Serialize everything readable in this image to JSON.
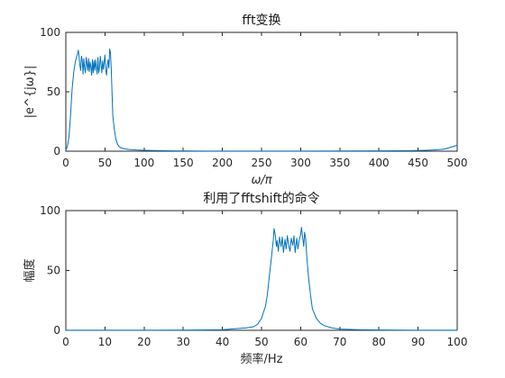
{
  "chart_data": [
    {
      "type": "line",
      "title": "fft变换",
      "xlabel": "ω/π",
      "ylabel": "|e^{jω}|",
      "xlim": [
        0,
        500
      ],
      "ylim": [
        0,
        100
      ],
      "xticks": [
        0,
        50,
        100,
        150,
        200,
        250,
        300,
        350,
        400,
        450,
        500
      ],
      "yticks": [
        0,
        50,
        100
      ],
      "grid": false,
      "series": [
        {
          "color": "#0072bd",
          "x": [
            0,
            2,
            4,
            6,
            8,
            10,
            12,
            14,
            15,
            16,
            17,
            18,
            19,
            20,
            21,
            22,
            23,
            24,
            25,
            26,
            27,
            28,
            29,
            30,
            31,
            32,
            33,
            34,
            35,
            36,
            37,
            38,
            39,
            40,
            41,
            42,
            43,
            44,
            45,
            46,
            47,
            48,
            49,
            50,
            51,
            52,
            53,
            54,
            55,
            56,
            57,
            58,
            59,
            60,
            62,
            64,
            66,
            68,
            70,
            75,
            80,
            90,
            100,
            120,
            140,
            160,
            180,
            200,
            250,
            300,
            350,
            400,
            440,
            460,
            470,
            480,
            485,
            490,
            495,
            500
          ],
          "y": [
            1,
            4,
            12,
            30,
            52,
            66,
            75,
            80,
            82,
            85,
            79,
            72,
            68,
            80,
            76,
            65,
            78,
            70,
            66,
            79,
            74,
            68,
            78,
            67,
            75,
            71,
            64,
            77,
            66,
            76,
            68,
            77,
            71,
            65,
            79,
            66,
            70,
            80,
            73,
            66,
            76,
            69,
            75,
            81,
            68,
            64,
            72,
            77,
            70,
            86,
            83,
            70,
            50,
            30,
            18,
            10,
            6,
            4,
            3,
            2,
            1.5,
            1,
            0.8,
            0.5,
            0.3,
            0.2,
            0.1,
            0.1,
            0.1,
            0.1,
            0.2,
            0.3,
            0.5,
            0.8,
            1,
            1.5,
            2,
            3,
            4,
            5
          ]
        }
      ]
    },
    {
      "type": "line",
      "title": "利用了fftshift的命令",
      "xlabel": "频率/Hz",
      "ylabel": "幅度",
      "xlim": [
        0,
        100
      ],
      "ylim": [
        0,
        100
      ],
      "xticks": [
        0,
        10,
        20,
        30,
        40,
        50,
        60,
        70,
        80,
        90,
        100
      ],
      "yticks": [
        0,
        50,
        100
      ],
      "grid": false,
      "series": [
        {
          "color": "#0072bd",
          "x": [
            0,
            10,
            20,
            30,
            35,
            40,
            42,
            44,
            46,
            48,
            49,
            50,
            51,
            51.5,
            52,
            52.5,
            53,
            53.2,
            53.5,
            53.8,
            54,
            54.3,
            54.6,
            55,
            55.3,
            55.6,
            56,
            56.3,
            56.6,
            57,
            57.3,
            57.6,
            58,
            58.3,
            58.6,
            59,
            59.3,
            59.6,
            60,
            60.2,
            60.5,
            60.8,
            61,
            61.3,
            61.6,
            62,
            62.5,
            63,
            64,
            65,
            66,
            68,
            70,
            75,
            80,
            90,
            100
          ],
          "y": [
            0.1,
            0.1,
            0.1,
            0.2,
            0.3,
            0.5,
            1,
            1.5,
            2,
            3,
            5,
            10,
            20,
            30,
            45,
            60,
            75,
            85,
            80,
            70,
            75,
            66,
            78,
            70,
            78,
            65,
            76,
            68,
            79,
            70,
            66,
            77,
            71,
            79,
            65,
            77,
            68,
            75,
            80,
            86,
            78,
            70,
            82,
            76,
            60,
            45,
            30,
            18,
            10,
            6,
            4,
            2,
            1,
            0.5,
            0.3,
            0.1,
            0.1
          ]
        }
      ]
    }
  ]
}
